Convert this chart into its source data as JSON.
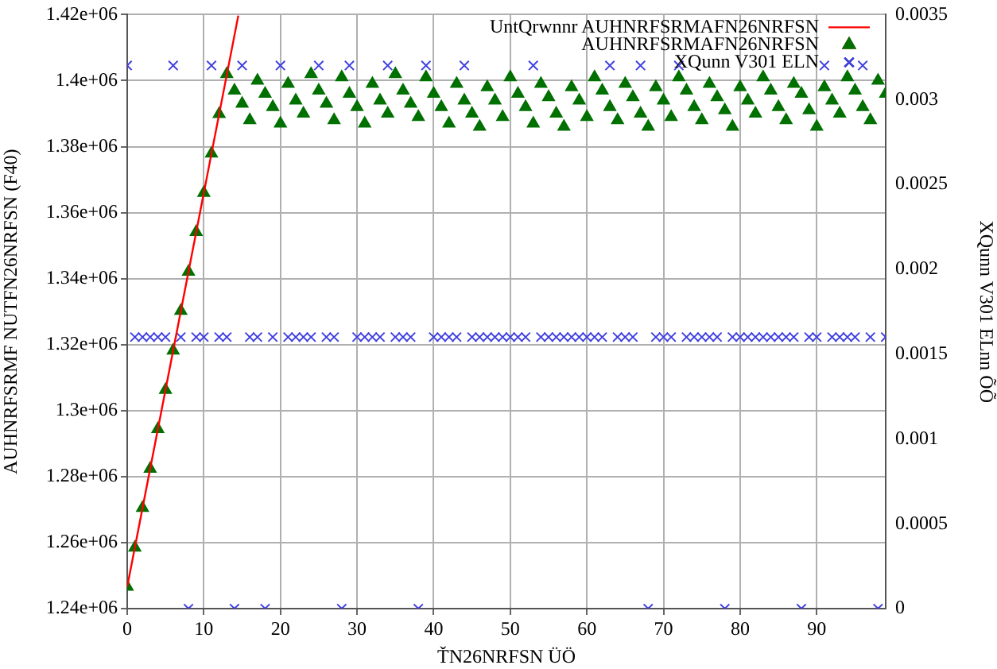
{
  "chart_data": {
    "type": "scatter",
    "xlabel": "ŤN26NRFSN ÜÖ",
    "ylabel": "AUHNRFSRMF NUTFN26NRFSN (F40)",
    "y2label": "XQunn V301 ELnn ÕÕ",
    "xlim": [
      0,
      99
    ],
    "xticks": [
      0,
      10,
      20,
      30,
      40,
      50,
      60,
      70,
      80,
      90
    ],
    "ylim": [
      1240000,
      1420000
    ],
    "yticks": [
      {
        "value": 1240000,
        "label": "1.24e+06"
      },
      {
        "value": 1260000,
        "label": "1.26e+06"
      },
      {
        "value": 1280000,
        "label": "1.28e+06"
      },
      {
        "value": 1300000,
        "label": "1.3e+06"
      },
      {
        "value": 1320000,
        "label": "1.32e+06"
      },
      {
        "value": 1340000,
        "label": "1.34e+06"
      },
      {
        "value": 1360000,
        "label": "1.36e+06"
      },
      {
        "value": 1380000,
        "label": "1.38e+06"
      },
      {
        "value": 1400000,
        "label": "1.4e+06"
      },
      {
        "value": 1420000,
        "label": "1.42e+06"
      }
    ],
    "y2lim": [
      0,
      0.0035
    ],
    "y2ticks": [
      0,
      0.0005,
      0.001,
      0.0015,
      0.002,
      0.0025,
      0.003,
      0.0035
    ],
    "grid": true,
    "legend": "top right",
    "series": [
      {
        "name": "UntQrwnnr AUHNRFSRMAFN26NRFSN",
        "type": "line",
        "marker": "none",
        "line_style": "solid",
        "color": "#ff0000",
        "x": [
          0,
          14.5
        ],
        "values": [
          1246600,
          1419700
        ]
      },
      {
        "name": "AUHNRFSRMAFN26NRFSN",
        "type": "scatter",
        "marker": "triangle",
        "color": "#007000",
        "x": [
          0,
          1,
          2,
          3,
          4,
          5,
          6,
          7,
          8,
          9,
          10,
          11,
          12,
          13,
          14,
          15,
          16,
          17,
          18,
          19,
          20,
          21,
          22,
          23,
          24,
          25,
          26,
          27,
          28,
          29,
          30,
          31,
          32,
          33,
          34,
          35,
          36,
          37,
          38,
          39,
          40,
          41,
          42,
          43,
          44,
          45,
          46,
          47,
          48,
          49,
          50,
          51,
          52,
          53,
          54,
          55,
          56,
          57,
          58,
          59,
          60,
          61,
          62,
          63,
          64,
          65,
          66,
          67,
          68,
          69,
          70,
          71,
          72,
          73,
          74,
          75,
          76,
          77,
          78,
          79,
          80,
          81,
          82,
          83,
          84,
          85,
          86,
          87,
          88,
          89,
          90,
          91,
          92,
          93,
          94,
          95,
          96,
          97,
          98,
          99
        ],
        "values": [
          1246600,
          1258500,
          1270500,
          1282400,
          1294400,
          1306300,
          1318200,
          1330200,
          1342100,
          1354100,
          1366000,
          1377900,
          1389900,
          1402000,
          1397000,
          1393000,
          1388000,
          1400000,
          1396000,
          1392000,
          1387000,
          1399000,
          1394000,
          1390000,
          1402000,
          1397000,
          1393000,
          1388000,
          1401000,
          1396000,
          1392000,
          1387000,
          1399000,
          1394000,
          1390000,
          1402000,
          1397000,
          1393000,
          1389000,
          1401000,
          1396000,
          1392000,
          1387000,
          1399000,
          1394000,
          1390000,
          1386000,
          1398000,
          1394000,
          1389000,
          1401000,
          1396000,
          1392000,
          1387000,
          1399000,
          1395000,
          1390000,
          1386000,
          1398000,
          1394000,
          1389000,
          1401000,
          1397000,
          1392000,
          1388000,
          1399000,
          1395000,
          1390000,
          1386000,
          1398000,
          1394000,
          1389000,
          1401000,
          1397000,
          1392000,
          1388000,
          1399000,
          1395000,
          1391000,
          1386000,
          1398000,
          1394000,
          1390000,
          1401000,
          1397000,
          1392000,
          1388000,
          1399000,
          1396000,
          1391000,
          1386000,
          1398000,
          1394000,
          1390000,
          1401000,
          1397000,
          1392000,
          1388000,
          1400000,
          1396000
        ]
      },
      {
        "name": "XQunn V301 ELN",
        "type": "scatter",
        "marker": "cross",
        "axis": "y2",
        "color": "#4040e0",
        "x": [
          0,
          6,
          11,
          15,
          20,
          25,
          29,
          34,
          39,
          44,
          53,
          63,
          67,
          72,
          91,
          96,
          8,
          14,
          18,
          28,
          38,
          68,
          78,
          88,
          98,
          1,
          2,
          3,
          4,
          5,
          7,
          9,
          10,
          12,
          13,
          16,
          17,
          19,
          21,
          22,
          23,
          24,
          26,
          27,
          30,
          31,
          32,
          33,
          35,
          36,
          37,
          40,
          41,
          42,
          43,
          45,
          46,
          47,
          48,
          49,
          50,
          51,
          52,
          54,
          55,
          56,
          57,
          58,
          59,
          60,
          61,
          62,
          64,
          65,
          66,
          69,
          70,
          71,
          73,
          74,
          75,
          76,
          77,
          79,
          80,
          81,
          82,
          83,
          84,
          85,
          86,
          87,
          89,
          90,
          92,
          93,
          94,
          95,
          97,
          99
        ],
        "values": [
          0.0032,
          0.0032,
          0.0032,
          0.0032,
          0.0032,
          0.0032,
          0.0032,
          0.0032,
          0.0032,
          0.0032,
          0.0032,
          0.0032,
          0.0032,
          0.0032,
          0.0032,
          0.0032,
          0,
          0,
          0,
          0,
          0,
          0,
          0,
          0,
          0,
          0.0016,
          0.0016,
          0.0016,
          0.0016,
          0.0016,
          0.0016,
          0.0016,
          0.0016,
          0.0016,
          0.0016,
          0.0016,
          0.0016,
          0.0016,
          0.0016,
          0.0016,
          0.0016,
          0.0016,
          0.0016,
          0.0016,
          0.0016,
          0.0016,
          0.0016,
          0.0016,
          0.0016,
          0.0016,
          0.0016,
          0.0016,
          0.0016,
          0.0016,
          0.0016,
          0.0016,
          0.0016,
          0.0016,
          0.0016,
          0.0016,
          0.0016,
          0.0016,
          0.0016,
          0.0016,
          0.0016,
          0.0016,
          0.0016,
          0.0016,
          0.0016,
          0.0016,
          0.0016,
          0.0016,
          0.0016,
          0.0016,
          0.0016,
          0.0016,
          0.0016,
          0.0016,
          0.0016,
          0.0016,
          0.0016,
          0.0016,
          0.0016,
          0.0016,
          0.0016,
          0.0016,
          0.0016,
          0.0016,
          0.0016,
          0.0016,
          0.0016,
          0.0016,
          0.0016,
          0.0016,
          0.0016,
          0.0016,
          0.0016,
          0.0016,
          0.0016,
          0.0016
        ]
      }
    ]
  }
}
